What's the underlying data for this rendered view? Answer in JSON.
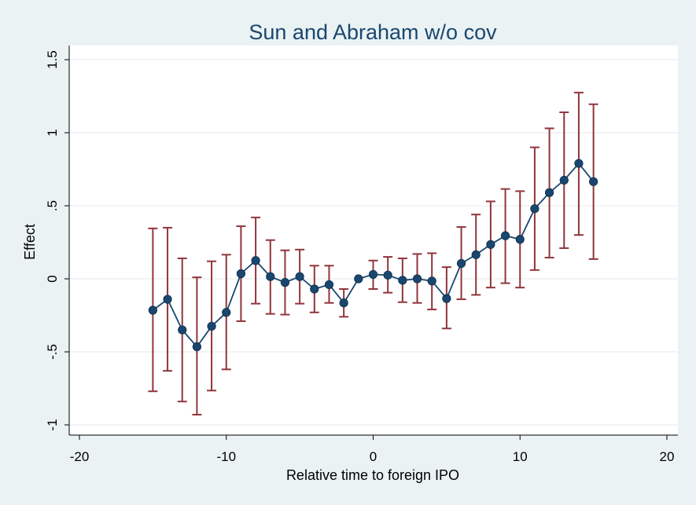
{
  "chart_data": {
    "type": "scatter",
    "title": "Sun and Abraham w/o cov",
    "xlabel": "Relative time to foreign IPO",
    "ylabel": "Effect",
    "xlim": [
      -20,
      20
    ],
    "ylim": [
      -1,
      1.5
    ],
    "x_ticks": [
      -20,
      -10,
      0,
      10,
      20
    ],
    "x_tick_labels": [
      "-20",
      "-10",
      "0",
      "10",
      "20"
    ],
    "y_ticks": [
      -1,
      -0.5,
      0,
      0.5,
      1,
      1.5
    ],
    "y_tick_labels": [
      "-1",
      "-.5",
      "0",
      ".5",
      "1",
      "1.5"
    ],
    "grid": true,
    "legend": "none",
    "colors": {
      "background": "#eaf2f3",
      "plot_background": "#ffffff",
      "grid": "#e8eef0",
      "line": "#1a476f",
      "marker": "#1a476f",
      "error_bar": "#90353b",
      "title": "#1a476f"
    },
    "series": [
      {
        "x": [
          -15,
          -14,
          -13,
          -12,
          -11,
          -10,
          -9,
          -8,
          -7,
          -6,
          -5,
          -4,
          -3,
          -2,
          -1,
          0,
          1,
          2,
          3,
          4,
          5,
          6,
          7,
          8,
          9,
          10,
          11,
          12,
          13,
          14,
          15
        ],
        "y": [
          -0.215,
          -0.14,
          -0.35,
          -0.465,
          -0.325,
          -0.23,
          0.035,
          0.125,
          0.015,
          -0.025,
          0.015,
          -0.07,
          -0.04,
          -0.165,
          0.0,
          0.03,
          0.025,
          -0.01,
          0.0,
          -0.015,
          -0.135,
          0.105,
          0.165,
          0.235,
          0.295,
          0.27,
          0.48,
          0.59,
          0.675,
          0.79,
          0.665
        ],
        "ci_low": [
          -0.77,
          -0.63,
          -0.84,
          -0.93,
          -0.765,
          -0.62,
          -0.29,
          -0.17,
          -0.24,
          -0.245,
          -0.17,
          -0.23,
          -0.165,
          -0.26,
          0.0,
          -0.07,
          -0.095,
          -0.16,
          -0.165,
          -0.21,
          -0.34,
          -0.14,
          -0.11,
          -0.06,
          -0.03,
          -0.06,
          0.06,
          0.145,
          0.21,
          0.3,
          0.135
        ],
        "ci_high": [
          0.345,
          0.35,
          0.14,
          0.01,
          0.12,
          0.165,
          0.36,
          0.42,
          0.265,
          0.195,
          0.2,
          0.09,
          0.09,
          -0.07,
          0.0,
          0.125,
          0.15,
          0.14,
          0.17,
          0.175,
          0.08,
          0.355,
          0.44,
          0.53,
          0.615,
          0.6,
          0.9,
          1.03,
          1.14,
          1.275,
          1.195
        ]
      }
    ]
  }
}
